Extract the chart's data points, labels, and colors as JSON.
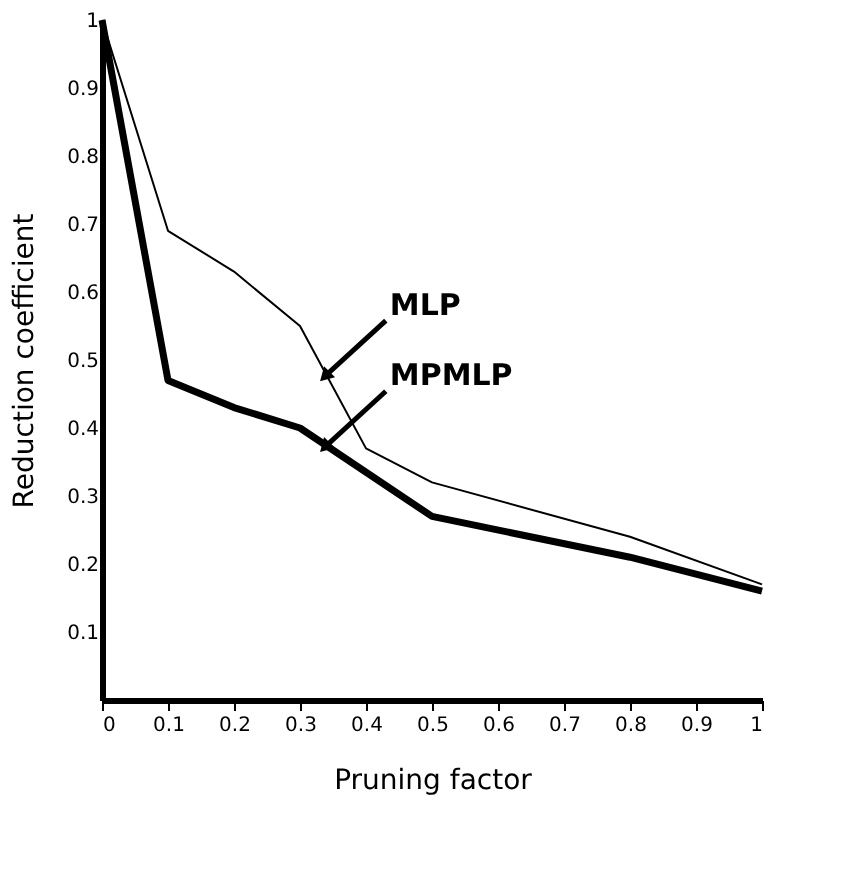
{
  "chart_data": {
    "type": "line",
    "xlabel": "Pruning factor",
    "ylabel": "Reduction coefficient",
    "xlim": [
      0,
      1
    ],
    "ylim": [
      0,
      1
    ],
    "xticks": [
      0,
      0.1,
      0.2,
      0.3,
      0.4,
      0.5,
      0.6,
      0.7,
      0.8,
      0.9,
      1
    ],
    "yticks": [
      0.1,
      0.2,
      0.3,
      0.4,
      0.5,
      0.6,
      0.7,
      0.8,
      0.9,
      1
    ],
    "grid": false,
    "marker": "none",
    "line_style": "solid",
    "series": [
      {
        "name": "MLP",
        "color": "#000000",
        "x": [
          0,
          0.1,
          0.2,
          0.3,
          0.4,
          0.5,
          0.8,
          1
        ],
        "values": [
          1.0,
          0.69,
          0.63,
          0.55,
          0.37,
          0.32,
          0.24,
          0.17
        ]
      },
      {
        "name": "MPMLP",
        "color": "#000000",
        "x": [
          0,
          0.1,
          0.2,
          0.3,
          0.5,
          0.8,
          1
        ],
        "values": [
          1.0,
          0.47,
          0.43,
          0.4,
          0.27,
          0.21,
          0.16
        ]
      }
    ]
  }
}
